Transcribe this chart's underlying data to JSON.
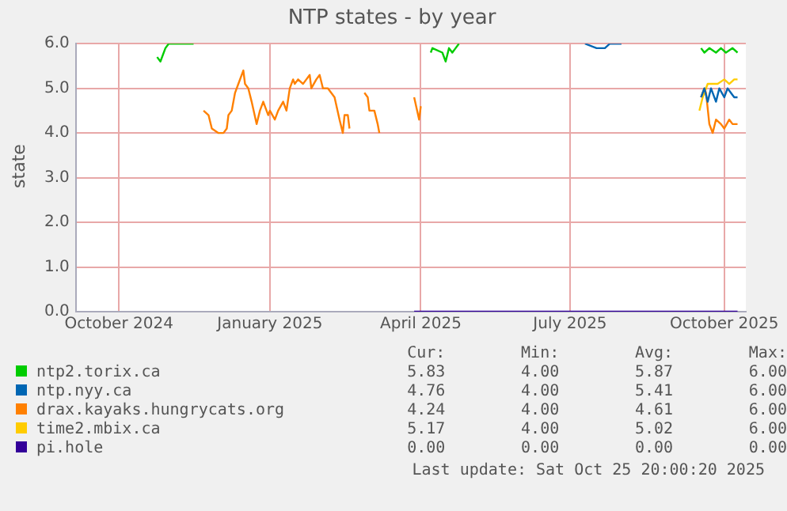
{
  "chart_data": {
    "type": "line",
    "title": "NTP states - by year",
    "ylabel": "state",
    "xlim": [
      "2024-09-20",
      "2025-10-29"
    ],
    "xticks": [
      {
        "value": "2024-10-16",
        "label": "October 2024"
      },
      {
        "value": "2025-01-15",
        "label": "January 2025"
      },
      {
        "value": "2025-04-16",
        "label": "April 2025"
      },
      {
        "value": "2025-07-15",
        "label": "July 2025"
      },
      {
        "value": "2025-10-16",
        "label": "October 2025"
      }
    ],
    "ylim": [
      0,
      6
    ],
    "yticks": [
      {
        "value": 0,
        "label": "0.0"
      },
      {
        "value": 1,
        "label": "1.0"
      },
      {
        "value": 2,
        "label": "2.0"
      },
      {
        "value": 3,
        "label": "3.0"
      },
      {
        "value": 4,
        "label": "4.0"
      },
      {
        "value": 5,
        "label": "5.0"
      },
      {
        "value": 6,
        "label": "6.0"
      }
    ],
    "grid": true,
    "legend": "bottom",
    "marker": "none",
    "line_style": "solid",
    "series": [
      {
        "name": "ntp2.torix.ca",
        "color": "#00cc00",
        "x": [
          "2024-11-08",
          "2024-11-10",
          "2024-11-13",
          "2024-11-15",
          "2024-11-30",
          "2025-03-01",
          "2025-04-22",
          "2025-04-23",
          "2025-04-29",
          "2025-05-01",
          "2025-05-03",
          "2025-05-05",
          "2025-05-07",
          "2025-05-09",
          "2025-06-01",
          "2025-10-02",
          "2025-10-04",
          "2025-10-07",
          "2025-10-11",
          "2025-10-14",
          "2025-10-17",
          "2025-10-21",
          "2025-10-24"
        ],
        "values": [
          5.7,
          5.6,
          5.9,
          6.0,
          6.0,
          null,
          5.8,
          5.9,
          5.8,
          5.6,
          5.9,
          5.8,
          5.9,
          6.0,
          null,
          5.9,
          5.8,
          5.9,
          5.8,
          5.9,
          5.8,
          5.9,
          5.8
        ]
      },
      {
        "name": "ntp.nyy.ca",
        "color": "#0066b3",
        "x": [
          "2025-07-24",
          "2025-07-31",
          "2025-08-05",
          "2025-08-08",
          "2025-08-15",
          "2025-09-01",
          "2025-10-02",
          "2025-10-04",
          "2025-10-06",
          "2025-10-08",
          "2025-10-11",
          "2025-10-13",
          "2025-10-16",
          "2025-10-18",
          "2025-10-22",
          "2025-10-24"
        ],
        "values": [
          6.0,
          5.9,
          5.9,
          6.0,
          6.0,
          null,
          4.8,
          5.0,
          4.7,
          5.0,
          4.7,
          5.0,
          4.8,
          5.0,
          4.8,
          4.8
        ]
      },
      {
        "name": "drax.kayaks.hungrycats.org",
        "color": "#ff8000",
        "x": [
          "2024-12-06",
          "2024-12-09",
          "2024-12-11",
          "2024-12-15",
          "2024-12-18",
          "2024-12-20",
          "2024-12-21",
          "2024-12-23",
          "2024-12-25",
          "2024-12-27",
          "2024-12-30",
          "2024-12-31",
          "2025-01-02",
          "2025-01-04",
          "2025-01-07",
          "2025-01-09",
          "2025-01-11",
          "2025-01-14",
          "2025-01-15",
          "2025-01-18",
          "2025-01-20",
          "2025-01-23",
          "2025-01-25",
          "2025-01-27",
          "2025-01-29",
          "2025-01-30",
          "2025-02-01",
          "2025-02-04",
          "2025-02-06",
          "2025-02-08",
          "2025-02-09",
          "2025-02-12",
          "2025-02-14",
          "2025-02-16",
          "2025-02-19",
          "2025-02-23",
          "2025-02-26",
          "2025-02-28",
          "2025-03-01",
          "2025-03-03",
          "2025-03-04",
          "2025-03-09",
          "2025-03-13",
          "2025-03-15",
          "2025-03-16",
          "2025-03-19",
          "2025-03-21",
          "2025-03-22",
          "2025-04-01",
          "2025-04-12",
          "2025-04-15",
          "2025-04-16",
          "2025-06-01",
          "2025-10-02",
          "2025-10-04",
          "2025-10-05",
          "2025-10-07",
          "2025-10-09",
          "2025-10-11",
          "2025-10-14",
          "2025-10-16",
          "2025-10-19",
          "2025-10-21",
          "2025-10-24"
        ],
        "values": [
          4.5,
          4.4,
          4.1,
          4.0,
          4.0,
          4.1,
          4.4,
          4.5,
          4.9,
          5.1,
          5.4,
          5.1,
          5.0,
          4.7,
          4.2,
          4.5,
          4.7,
          4.4,
          4.5,
          4.3,
          4.5,
          4.7,
          4.5,
          5.0,
          5.2,
          5.1,
          5.2,
          5.1,
          5.2,
          5.3,
          5.0,
          5.2,
          5.3,
          5.0,
          5.0,
          4.8,
          4.3,
          4.0,
          4.4,
          4.4,
          4.1,
          null,
          4.9,
          4.8,
          4.5,
          4.5,
          4.2,
          4.0,
          null,
          4.8,
          4.3,
          4.6,
          null,
          4.8,
          5.0,
          4.9,
          4.2,
          4.0,
          4.3,
          4.2,
          4.1,
          4.3,
          4.2,
          4.2
        ]
      },
      {
        "name": "time2.mbix.ca",
        "color": "#ffcc00",
        "x": [
          "2025-10-01",
          "2025-10-03",
          "2025-10-06",
          "2025-10-09",
          "2025-10-12",
          "2025-10-16",
          "2025-10-19",
          "2025-10-22",
          "2025-10-24"
        ],
        "values": [
          4.5,
          4.8,
          5.1,
          5.1,
          5.1,
          5.2,
          5.1,
          5.2,
          5.2
        ]
      },
      {
        "name": "pi.hole",
        "color": "#330099",
        "x": [
          "2025-04-12",
          "2025-10-24"
        ],
        "values": [
          0,
          0
        ]
      }
    ],
    "annotations": [
      "Cur:",
      "Min:",
      "Avg:",
      "Max:",
      "5.83",
      "4.00",
      "5.87",
      "6.00",
      "4.76",
      "4.00",
      "5.41",
      "6.00",
      "4.24",
      "4.00",
      "4.61",
      "6.00",
      "5.17",
      "4.00",
      "5.02",
      "6.00",
      "0.00",
      "0.00",
      "0.00",
      "0.00",
      "Last update: Sat Oct 25 20:00:20 2025"
    ]
  }
}
